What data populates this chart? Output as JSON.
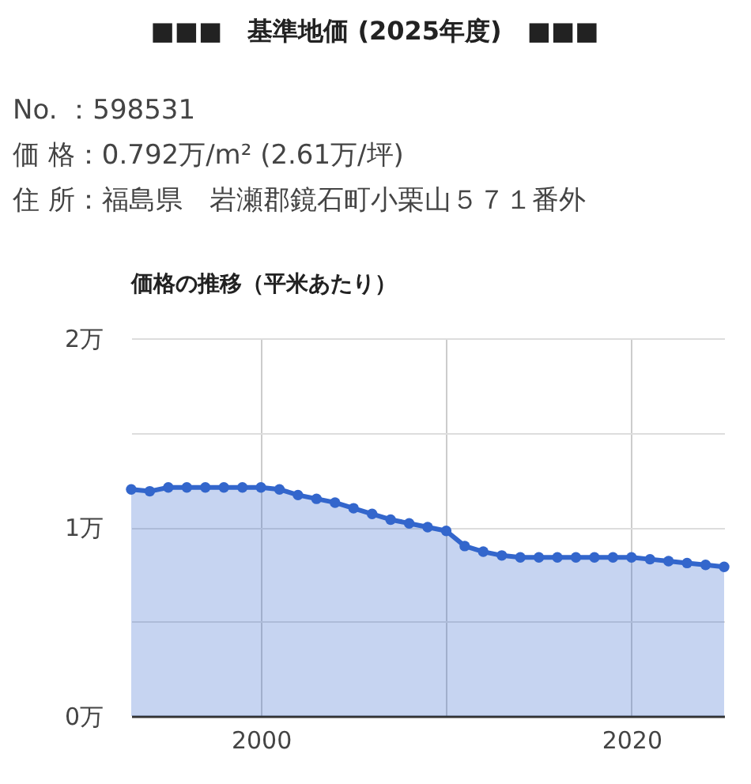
{
  "chart_data": {
    "type": "area",
    "title": "■■■　基準地価 (2025年度)　■■■",
    "subtitle": "価格の推移（平米あたり）",
    "annotations": [
      "No. ：598531",
      "価 格：0.792万/m² (2.61万/坪)",
      "住 所：福島県　岩瀬郡鏡石町小栗山５７１番外"
    ],
    "x": [
      1993,
      1994,
      1995,
      1996,
      1997,
      1998,
      1999,
      2000,
      2001,
      2002,
      2003,
      2004,
      2005,
      2006,
      2007,
      2008,
      2009,
      2010,
      2011,
      2012,
      2013,
      2014,
      2015,
      2016,
      2017,
      2018,
      2019,
      2020,
      2021,
      2022,
      2023,
      2024,
      2025
    ],
    "series": [
      {
        "color": "#3366cc",
        "values": [
          1.2,
          1.19,
          1.21,
          1.21,
          1.21,
          1.21,
          1.21,
          1.21,
          1.2,
          1.17,
          1.15,
          1.13,
          1.1,
          1.07,
          1.04,
          1.02,
          1.0,
          0.98,
          0.9,
          0.87,
          0.85,
          0.84,
          0.84,
          0.84,
          0.84,
          0.84,
          0.84,
          0.84,
          0.83,
          0.82,
          0.81,
          0.8,
          0.79
        ]
      }
    ],
    "xlim": [
      1993,
      2025
    ],
    "xticks": [
      2000,
      {
        "value": 2010,
        "label": null
      },
      2020
    ],
    "ylim": [
      0,
      2
    ],
    "yticks": [
      {
        "value": 0,
        "label": "0万"
      },
      {
        "value": 0.5,
        "label": null
      },
      {
        "value": 1,
        "label": "1万"
      },
      {
        "value": 1.5,
        "label": null
      },
      {
        "value": 2,
        "label": "2万"
      }
    ],
    "grid": true,
    "marker": "circle"
  }
}
